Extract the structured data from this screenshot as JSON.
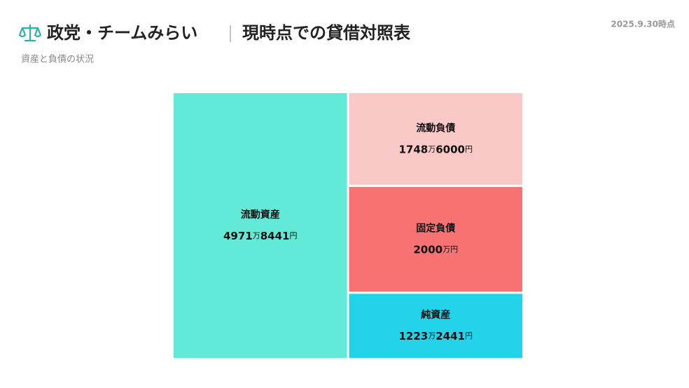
{
  "chart_data": {
    "type": "treemap",
    "title": "政党・チームみらい",
    "title_detail": "現時点での貸借対照表",
    "subtitle": "資産と負債の状況",
    "date": "2025.9.30時点",
    "groups": [
      {
        "categories": [
          "流動資産"
        ],
        "values": [
          49718441
        ],
        "value_labels": [
          "4971万8441円"
        ],
        "colors": [
          "#62e9d7"
        ]
      },
      {
        "categories": [
          "流動負債",
          "固定負債",
          "純資産"
        ],
        "values": [
          17486000,
          20000000,
          12232441
        ],
        "value_labels": [
          "1748万6000円",
          "2000万円",
          "1223万2441円"
        ],
        "colors": [
          "#fbc8c8",
          "#f77373",
          "#22d3ea"
        ]
      }
    ]
  }
}
